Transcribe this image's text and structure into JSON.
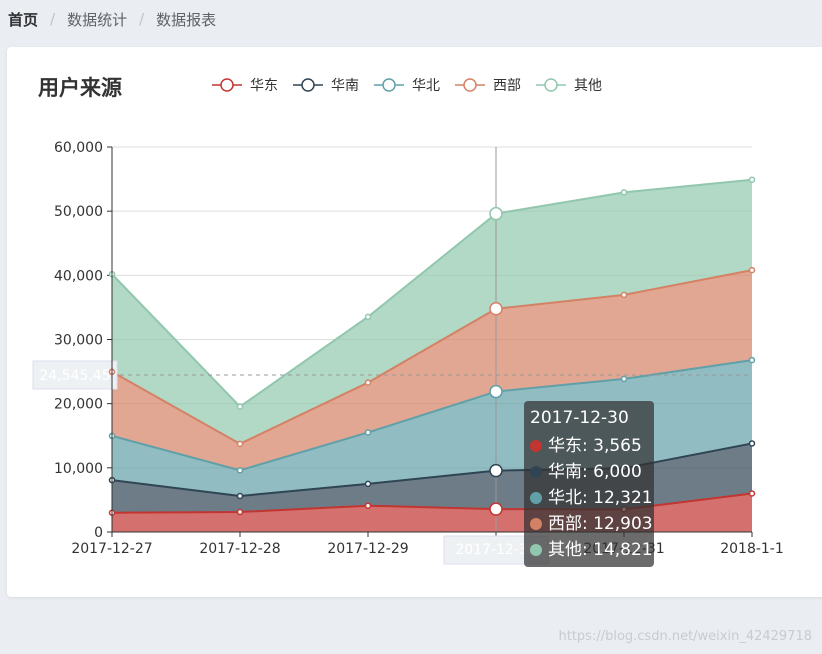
{
  "breadcrumb": {
    "items": [
      "首页",
      "数据统计",
      "数据报表"
    ],
    "separator": "/"
  },
  "watermark": "https://blog.csdn.net/weixin_42429718",
  "chart_data": {
    "type": "area",
    "stacked": true,
    "title": "用户来源",
    "legend_position": "top",
    "categories": [
      "2017-12-27",
      "2017-12-28",
      "2017-12-29",
      "2017-12-30",
      "2017-12-31",
      "2018-1-1"
    ],
    "ylim": [
      0,
      60000
    ],
    "yticks": [
      0,
      10000,
      20000,
      30000,
      40000,
      50000,
      60000
    ],
    "ytick_labels": [
      "0",
      "10,000",
      "20,000",
      "30,000",
      "40,000",
      "50,000",
      "60,000"
    ],
    "grid": true,
    "series": [
      {
        "name": "华东",
        "color": "#c23531",
        "values": [
          2999,
          3111,
          4100,
          3565,
          3528,
          6000
        ]
      },
      {
        "name": "华南",
        "color": "#2f4554",
        "values": [
          5090,
          2500,
          3400,
          6000,
          6400,
          7800
        ]
      },
      {
        "name": "华北",
        "color": "#61a0a8",
        "values": [
          6888,
          4000,
          8010,
          12321,
          13928,
          12984
        ]
      },
      {
        "name": "西部",
        "color": "#d48265",
        "values": [
          9991,
          4130,
          7777,
          12903,
          13098,
          14028
        ]
      },
      {
        "name": "其他",
        "color": "#91c7ae",
        "values": [
          15212,
          5800,
          10241,
          14821,
          15982,
          14091
        ]
      }
    ],
    "crosshair": {
      "category": "2017-12-30",
      "y_value_label": "24,545.45"
    },
    "tooltip": {
      "title": "2017-12-30",
      "rows": [
        "华东: 3,565",
        "华南: 6,000",
        "华北: 12,321",
        "西部: 12,903",
        "其他: 14,821"
      ]
    }
  }
}
